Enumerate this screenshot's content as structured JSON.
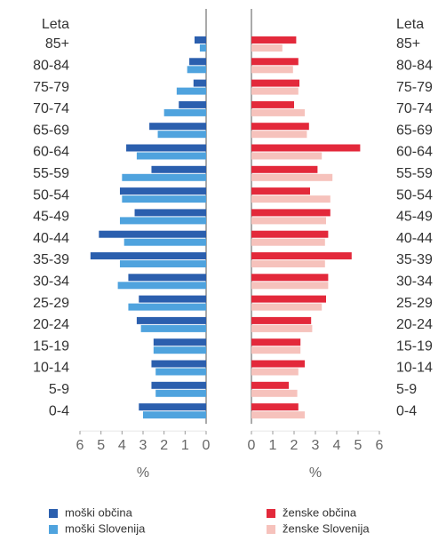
{
  "chart_data": [
    {
      "type": "bar",
      "orientation": "horizontal",
      "ylabel": "Leta",
      "xlabel": "%",
      "categories": [
        "85+",
        "80-84",
        "75-79",
        "70-74",
        "65-69",
        "60-64",
        "55-59",
        "50-54",
        "45-49",
        "40-44",
        "35-39",
        "30-34",
        "25-29",
        "20-24",
        "15-19",
        "10-14",
        "5-9",
        "0-4"
      ],
      "series": [
        {
          "name": "moški občina",
          "color": "#2b5fae",
          "values": [
            0.55,
            0.8,
            0.6,
            1.3,
            2.7,
            3.8,
            2.6,
            4.1,
            3.4,
            5.1,
            5.5,
            3.7,
            3.2,
            3.3,
            2.5,
            2.6,
            2.6,
            3.2
          ]
        },
        {
          "name": "moški Slovenija",
          "color": "#4fa3de",
          "values": [
            0.3,
            0.9,
            1.4,
            2.0,
            2.3,
            3.3,
            4.0,
            4.0,
            4.1,
            3.9,
            4.1,
            4.2,
            3.7,
            3.1,
            2.5,
            2.4,
            2.4,
            3.0
          ]
        }
      ],
      "xlim": [
        6,
        0
      ],
      "xticks": [
        6,
        5,
        4,
        3,
        2,
        1,
        0
      ]
    },
    {
      "type": "bar",
      "orientation": "horizontal",
      "ylabel": "Leta",
      "xlabel": "%",
      "categories": [
        "85+",
        "80-84",
        "75-79",
        "70-74",
        "65-69",
        "60-64",
        "55-59",
        "50-54",
        "45-49",
        "40-44",
        "35-39",
        "30-34",
        "25-29",
        "20-24",
        "15-19",
        "10-14",
        "5-9",
        "0-4"
      ],
      "series": [
        {
          "name": "ženske občina",
          "color": "#e3293b",
          "values": [
            2.1,
            2.2,
            2.25,
            2.0,
            2.7,
            5.1,
            3.1,
            2.75,
            3.7,
            3.6,
            4.7,
            3.6,
            3.5,
            2.8,
            2.3,
            2.5,
            1.75,
            2.2
          ]
        },
        {
          "name": "ženske Slovenija",
          "color": "#f6c2bc",
          "values": [
            1.45,
            1.95,
            2.2,
            2.5,
            2.6,
            3.3,
            3.8,
            3.7,
            3.5,
            3.45,
            3.45,
            3.6,
            3.3,
            2.85,
            2.3,
            2.2,
            2.15,
            2.5
          ]
        }
      ],
      "xlim": [
        0,
        6
      ],
      "xticks": [
        0,
        1,
        2,
        3,
        4,
        5,
        6
      ]
    }
  ]
}
